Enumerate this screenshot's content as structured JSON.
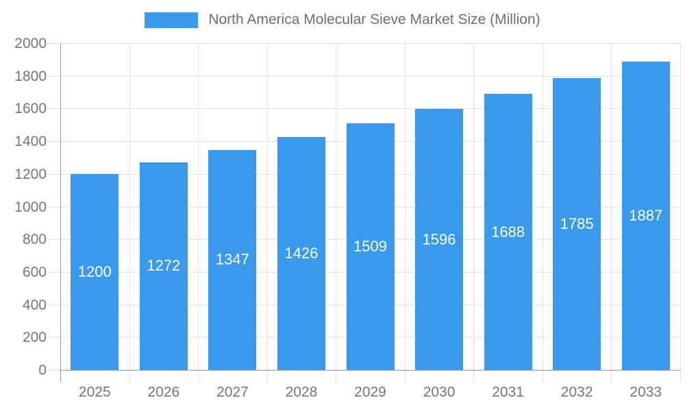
{
  "chart_data": {
    "type": "bar",
    "title": "North America Molecular Sieve Market Size (Million)",
    "legend": "North America Molecular Sieve Market Size (Million)",
    "legend_position": "top-center",
    "categories": [
      "2025",
      "2026",
      "2027",
      "2028",
      "2029",
      "2030",
      "2031",
      "2032",
      "2033"
    ],
    "values": [
      1200,
      1272,
      1347,
      1426,
      1509,
      1596,
      1688,
      1785,
      1887
    ],
    "xlabel": "",
    "ylabel": "",
    "ylim": [
      0,
      2000
    ],
    "ytick_step": 200,
    "ytick_labels": [
      "0",
      "200",
      "400",
      "600",
      "800",
      "1000",
      "1200",
      "1400",
      "1600",
      "1800",
      "2000"
    ],
    "grid": true,
    "bar_label_position": "inside-center"
  },
  "colors": {
    "bar": "#3999ed",
    "bar_label": "#ffffff",
    "gridline": "#e0e0e0",
    "axis_line": "#999999",
    "tick_text": "#757575",
    "legend_text": "#6e6e6e",
    "background": "#ffffff"
  }
}
